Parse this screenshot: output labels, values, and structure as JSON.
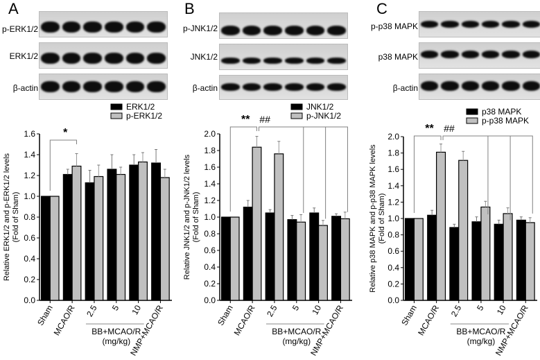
{
  "panels": [
    {
      "letter": "A",
      "blots": [
        {
          "label": "p-ERK1/2"
        },
        {
          "label": "ERK1/2"
        },
        {
          "label": "β-actin"
        }
      ]
    },
    {
      "letter": "B",
      "blots": [
        {
          "label": "p-JNK1/2"
        },
        {
          "label": "JNK1/2"
        },
        {
          "label": "β-actin"
        }
      ]
    },
    {
      "letter": "C",
      "blots": [
        {
          "label": "p-p38 MAPK"
        },
        {
          "label": "p38 MAPK"
        },
        {
          "label": "β-actin"
        }
      ]
    }
  ],
  "colors": {
    "total": "#000000",
    "phospho": "#c0c0c0",
    "bracket": "#808080"
  },
  "chart_data": [
    {
      "type": "bar",
      "panel": "A",
      "categories": [
        "Sham",
        "MCAO/R",
        "2.5",
        "5",
        "10",
        "NMP+MCAO/R"
      ],
      "group_label": "BB+MCAO/R",
      "group_unit": "(mg/kg)",
      "series": [
        {
          "name": "ERK1/2",
          "values": [
            1.0,
            1.21,
            1.13,
            1.26,
            1.3,
            1.32
          ],
          "errors": [
            0.0,
            0.05,
            0.12,
            0.14,
            0.1,
            0.13
          ]
        },
        {
          "name": "p-ERK1/2",
          "values": [
            1.0,
            1.29,
            1.19,
            1.21,
            1.33,
            1.18
          ],
          "errors": [
            0.0,
            0.12,
            0.11,
            0.07,
            0.09,
            0.08
          ]
        }
      ],
      "ylabel": "Relative ERK1/2 and p-ERK1/2 levels",
      "ylabel2": "(Fold of Sham)",
      "ylim": [
        0,
        1.6
      ],
      "yticks": [
        "0.0",
        "0.2",
        "0.4",
        "0.6",
        "0.8",
        "1.0",
        "1.2",
        "1.4",
        "1.6"
      ],
      "annotations": [
        {
          "text": "*",
          "between": [
            "Sham",
            "MCAO/R"
          ]
        }
      ],
      "legend_position": "top-right"
    },
    {
      "type": "bar",
      "panel": "B",
      "categories": [
        "Sham",
        "MCAO/R",
        "2.5",
        "5",
        "10",
        "NMP+MCAO/R"
      ],
      "group_label": "BB+MCAO/R",
      "group_unit": "(mg/kg)",
      "series": [
        {
          "name": "JNK1/2",
          "values": [
            1.0,
            1.12,
            1.05,
            0.97,
            1.05,
            1.01
          ],
          "errors": [
            0.0,
            0.08,
            0.04,
            0.05,
            0.06,
            0.03
          ]
        },
        {
          "name": "p-JNK1/2",
          "values": [
            1.0,
            1.84,
            1.76,
            0.94,
            0.9,
            0.98
          ],
          "errors": [
            0.0,
            0.13,
            0.15,
            0.09,
            0.06,
            0.08
          ]
        }
      ],
      "ylabel": "Relative JNK1/2 and p-JNK1/2 levels",
      "ylabel2": "(Fold of Sham)",
      "ylim": [
        0,
        2.0
      ],
      "yticks": [
        "0.0",
        "0.2",
        "0.4",
        "0.6",
        "0.8",
        "1.0",
        "1.2",
        "1.4",
        "1.6",
        "1.8",
        "2.0"
      ],
      "annotations": [
        {
          "text": "**",
          "between": [
            "Sham",
            "MCAO/R"
          ]
        },
        {
          "text": "##",
          "between": [
            "MCAO/R",
            "5",
            "10",
            "NMP+MCAO/R"
          ]
        }
      ],
      "legend_position": "top-right"
    },
    {
      "type": "bar",
      "panel": "C",
      "categories": [
        "Sham",
        "MCAO/R",
        "2.5",
        "5",
        "10",
        "NMP+MCAO/R"
      ],
      "group_label": "BB+MCAO/R",
      "group_unit": "(mg/kg)",
      "series": [
        {
          "name": "p38 MAPK",
          "values": [
            1.0,
            1.04,
            0.89,
            0.96,
            0.93,
            0.98
          ],
          "errors": [
            0.0,
            0.06,
            0.04,
            0.06,
            0.05,
            0.04
          ]
        },
        {
          "name": "p-p38 MAPK",
          "values": [
            1.0,
            1.81,
            1.71,
            1.14,
            1.06,
            0.95
          ],
          "errors": [
            0.0,
            0.1,
            0.11,
            0.07,
            0.07,
            0.06
          ]
        }
      ],
      "ylabel": "Relative p38 MAPK and p-p38 MAPK levels",
      "ylabel2": "(Fold of Sham)",
      "ylim": [
        0,
        2.0
      ],
      "yticks": [
        "0.0",
        "0.2",
        "0.4",
        "0.6",
        "0.8",
        "1.0",
        "1.2",
        "1.4",
        "1.6",
        "1.8",
        "2.0"
      ],
      "annotations": [
        {
          "text": "**",
          "between": [
            "Sham",
            "MCAO/R"
          ]
        },
        {
          "text": "##",
          "between": [
            "MCAO/R",
            "5",
            "10",
            "NMP+MCAO/R"
          ]
        }
      ],
      "legend_position": "top-right"
    }
  ]
}
